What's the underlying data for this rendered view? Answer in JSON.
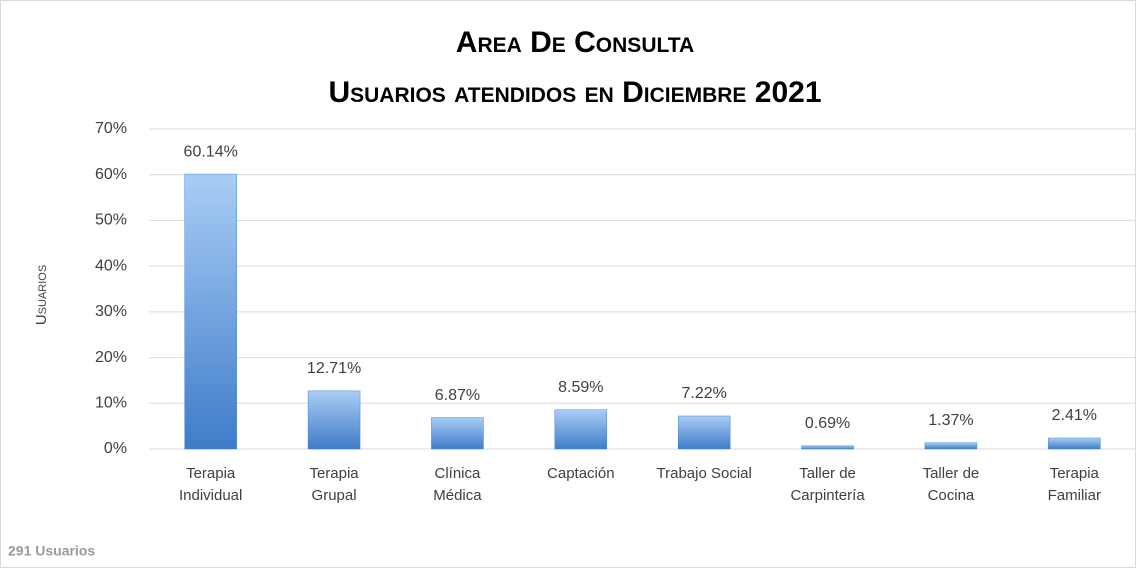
{
  "chart_data": {
    "type": "bar",
    "title": "Area De Consulta",
    "subtitle": "Usuarios atendidos en Diciembre 2021",
    "y_label": "Usuarios",
    "footnote": "291 Usuarios",
    "categories": [
      "Terapia\nIndividual",
      "Terapia\nGrupal",
      "Clínica\nMédica",
      "Captación",
      "Trabajo Social",
      "Taller de\nCarpintería",
      "Taller de\nCocina",
      "Terapia\nFamiliar"
    ],
    "values": [
      60.14,
      12.71,
      6.87,
      8.59,
      7.22,
      0.69,
      1.37,
      2.41
    ],
    "value_labels": [
      "60.14%",
      "12.71%",
      "6.87%",
      "8.59%",
      "7.22%",
      "0.69%",
      "1.37%",
      "2.41%"
    ],
    "color": "#4a86d0",
    "ylim": [
      0,
      70
    ],
    "yticks": [
      {
        "value": 0,
        "label": "0%"
      },
      {
        "value": 10,
        "label": "10%"
      },
      {
        "value": 20,
        "label": "20%"
      },
      {
        "value": 30,
        "label": "30%"
      },
      {
        "value": 40,
        "label": "40%"
      },
      {
        "value": 50,
        "label": "50%"
      },
      {
        "value": 60,
        "label": "60%"
      },
      {
        "value": 70,
        "label": "70%"
      }
    ],
    "grid": true
  }
}
